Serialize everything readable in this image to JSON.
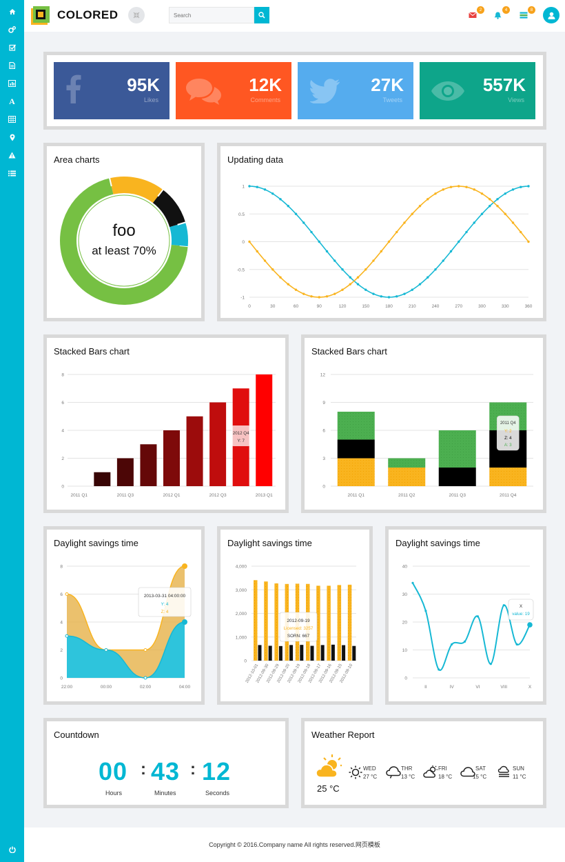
{
  "header": {
    "brand": "COLORED",
    "search_placeholder": "Search",
    "badges": {
      "mail": "2",
      "bell": "4",
      "tasks": "8"
    },
    "colors": {
      "accent": "#00b7d3",
      "mail_badge": "#f7a21b",
      "bell_badge": "#f7a21b",
      "tasks_badge": "#f7a21b"
    }
  },
  "sidebar": {
    "items": [
      {
        "icon": "home-icon"
      },
      {
        "icon": "gears-icon"
      },
      {
        "icon": "checkbox-icon"
      },
      {
        "icon": "file-icon"
      },
      {
        "icon": "bar-chart-icon"
      },
      {
        "icon": "font-icon"
      },
      {
        "icon": "table-icon"
      },
      {
        "icon": "map-marker-icon"
      },
      {
        "icon": "warning-icon"
      },
      {
        "icon": "list-icon"
      }
    ],
    "bottom_icon": "power-icon"
  },
  "stats": [
    {
      "value": "95K",
      "label": "Likes",
      "color": "#3b5998",
      "icon": "facebook-icon"
    },
    {
      "value": "12K",
      "label": "Comments",
      "color": "#ff5722",
      "icon": "comments-icon"
    },
    {
      "value": "27K",
      "label": "Tweets",
      "color": "#55acee",
      "icon": "twitter-icon"
    },
    {
      "value": "557K",
      "label": "Views",
      "color": "#0ea58a",
      "icon": "eye-icon"
    }
  ],
  "panels": {
    "area": "Area charts",
    "updating": "Updating data",
    "stacked1": "Stacked Bars chart",
    "stacked2": "Stacked Bars chart",
    "dst1": "Daylight savings time",
    "dst2": "Daylight savings time",
    "dst3": "Daylight savings time",
    "countdown": "Countdown",
    "weather": "Weather Report"
  },
  "chart_data": [
    {
      "type": "pie",
      "center_title": "foo",
      "center_subtitle": "at least 70%",
      "slices": [
        {
          "value": 70,
          "color": "#76c043"
        },
        {
          "value": 14,
          "color": "#f9b41f"
        },
        {
          "value": 10,
          "color": "#111111"
        },
        {
          "value": 6,
          "color": "#16b8d4"
        }
      ]
    },
    {
      "type": "line",
      "x_ticks": [
        "0",
        "30",
        "60",
        "90",
        "120",
        "150",
        "180",
        "210",
        "240",
        "270",
        "300",
        "330",
        "360"
      ],
      "y_ticks": [
        "1",
        "0.5",
        "0",
        "-0.5",
        "-1"
      ],
      "ylim": [
        -1,
        1
      ],
      "xlim": [
        0,
        360
      ],
      "series": [
        {
          "function": "cos",
          "color": "#16b8d4"
        },
        {
          "function": "-sin",
          "color": "#f9b41f"
        }
      ]
    },
    {
      "type": "bar",
      "categories": [
        "2011 Q1",
        "2011 Q2",
        "2011 Q3",
        "2011 Q4",
        "2012 Q1",
        "2012 Q2",
        "2012 Q3",
        "2012 Q4",
        "2013 Q1"
      ],
      "tick_labels": [
        "2011 Q1",
        "2011 Q3",
        "2012 Q1",
        "2012 Q3",
        "2013 Q1"
      ],
      "y_ticks": [
        "8",
        "6",
        "4",
        "2",
        "0"
      ],
      "values": [
        0,
        1,
        2,
        3,
        4,
        5,
        6,
        7,
        8
      ],
      "ylim": [
        0,
        8
      ],
      "tooltip": {
        "title": "2012 Q4",
        "line": "Y: 7"
      }
    },
    {
      "type": "bar",
      "stacked": true,
      "categories": [
        "2011 Q1",
        "2011 Q2",
        "2011 Q3",
        "2011 Q4"
      ],
      "y_ticks": [
        "12",
        "9",
        "6",
        "3",
        "0"
      ],
      "ylim": [
        0,
        12
      ],
      "series": [
        {
          "name": "Y",
          "values": [
            3,
            2,
            0,
            2
          ],
          "color": "#f9b41f"
        },
        {
          "name": "Z",
          "values": [
            2,
            0,
            2,
            4
          ],
          "color": "#000000"
        },
        {
          "name": "A",
          "values": [
            3,
            1,
            4,
            3
          ],
          "color": "#4caf50"
        }
      ],
      "tooltip": {
        "title": "2011 Q4",
        "lines": [
          "Y: 2",
          "Z: 4",
          "A: 3"
        ]
      }
    },
    {
      "type": "area",
      "x_ticks": [
        "22:00",
        "00:00",
        "02:00",
        "04:00"
      ],
      "y_ticks": [
        "8",
        "6",
        "4",
        "2",
        "0"
      ],
      "ylim": [
        0,
        8
      ],
      "series": [
        {
          "name": "Y",
          "values": [
            3,
            2,
            0,
            4
          ],
          "color": "#16b8d4"
        },
        {
          "name": "Z",
          "values": [
            3,
            0,
            2,
            4
          ],
          "color": "#f9b41f"
        }
      ],
      "tooltip": {
        "title": "2013-03-31 04:00:00",
        "lines": [
          "Y: 4",
          "Z: 4"
        ]
      }
    },
    {
      "type": "bar",
      "categories": [
        "2012-10-01",
        "2012-09-30",
        "2012-09-29",
        "2012-09-20",
        "2012-09-19",
        "2012-09-18",
        "2012-09-17",
        "2012-09-16",
        "2012-09-15",
        "2012-09-10"
      ],
      "y_ticks": [
        "4,000",
        "3,000",
        "2,000",
        "1,000",
        "0"
      ],
      "ylim": [
        0,
        4000
      ],
      "series": [
        {
          "name": "Licensed",
          "values": [
            3407,
            3351,
            3269,
            3246,
            3257,
            3248,
            3171,
            3171,
            3201,
            3215
          ],
          "color": "#f9b41f"
        },
        {
          "name": "SORN",
          "values": [
            660,
            629,
            618,
            661,
            667,
            627,
            660,
            676,
            656,
            622
          ],
          "color": "#111111"
        }
      ],
      "tooltip": {
        "title": "2012-09-19",
        "lines": [
          "Licensed: 3257",
          "SORN: 667"
        ]
      }
    },
    {
      "type": "line",
      "categories": [
        "I",
        "II",
        "III",
        "IV",
        "V",
        "VI",
        "VII",
        "VIII",
        "IX",
        "X"
      ],
      "tick_labels": [
        "II",
        "IV",
        "VI",
        "VIII",
        "X"
      ],
      "y_ticks": [
        "40",
        "30",
        "20",
        "10",
        "0"
      ],
      "ylim": [
        0,
        40
      ],
      "values": [
        34,
        24,
        3,
        12,
        13,
        22,
        5,
        26,
        12,
        19
      ],
      "color": "#16b8d4",
      "tooltip": {
        "title": "X",
        "line": "value: 19"
      }
    }
  ],
  "countdown": {
    "hours": "00",
    "minutes": "43",
    "seconds": "12",
    "hours_label": "Hours",
    "minutes_label": "Minutes",
    "seconds_label": "Seconds"
  },
  "weather": {
    "today_temp": "25 °C",
    "days": [
      {
        "day": "WED",
        "temp": "27 °C",
        "icon": "sun-icon"
      },
      {
        "day": "THR",
        "temp": "13 °C",
        "icon": "cloud-icon"
      },
      {
        "day": "FRI",
        "temp": "18 °C",
        "icon": "partly-cloudy-icon"
      },
      {
        "day": "SAT",
        "temp": "15 °C",
        "icon": "cloud-icon"
      },
      {
        "day": "SUN",
        "temp": "11 °C",
        "icon": "fog-icon"
      }
    ]
  },
  "footer": {
    "text": "Copyright © 2016.Company name All rights reserved.网页模板"
  }
}
